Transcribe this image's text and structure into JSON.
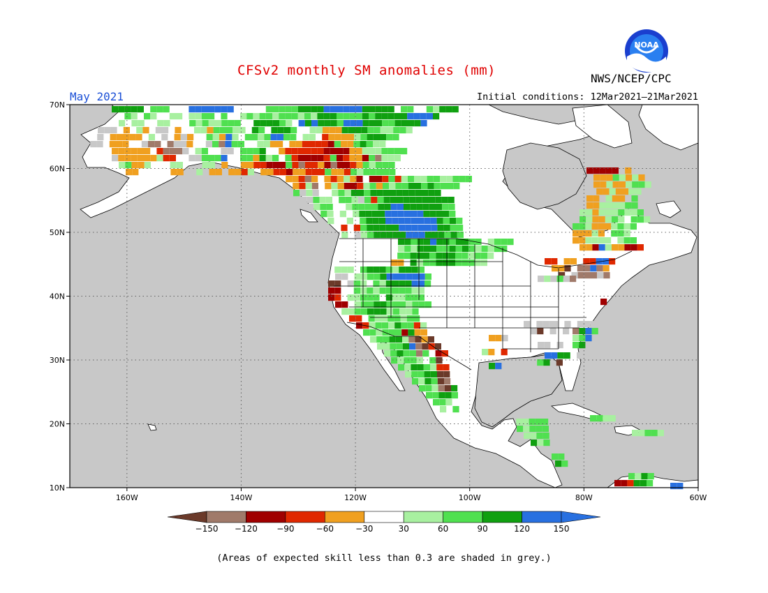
{
  "title": "CFSv2 monthly SM anomalies (mm)",
  "organization": "NWS/NCEP/CPC",
  "logo_text": "NOAA",
  "target_month": "May 2021",
  "initial_conditions": "Initial conditions: 12Mar2021–21Mar2021",
  "footnote": "(Areas of expected skill less than 0.3 are shaded in grey.)",
  "axes": {
    "lat_labels": [
      "70N",
      "60N",
      "50N",
      "40N",
      "30N",
      "20N",
      "10N"
    ],
    "lat_values": [
      70,
      60,
      50,
      40,
      30,
      20,
      10
    ],
    "lon_labels": [
      "160W",
      "140W",
      "120W",
      "100W",
      "80W",
      "60W"
    ],
    "lon_values": [
      -160,
      -140,
      -120,
      -100,
      -80,
      -60
    ],
    "lon_range": [
      -170,
      -60
    ],
    "lat_range": [
      10,
      70
    ]
  },
  "colorbar": {
    "tick_labels": [
      "−150",
      "−120",
      "−90",
      "−60",
      "−30",
      "30",
      "60",
      "90",
      "120",
      "150"
    ],
    "colors": [
      "#6b3a2a",
      "#a07a6a",
      "#a00000",
      "#e02800",
      "#f0a020",
      "#ffffff",
      "#a8f0a0",
      "#50e050",
      "#10a010",
      "#2870e0",
      "#2870e0"
    ]
  },
  "colors": {
    "ocean": "#c8c8c8",
    "land": "#ffffff",
    "low_skill": "#c8c8c8"
  }
}
